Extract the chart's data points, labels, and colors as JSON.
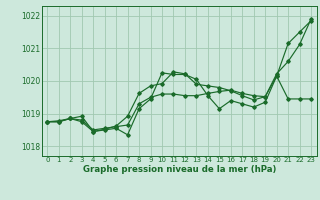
{
  "background_color": "#cde8dc",
  "grid_color": "#a0c8b0",
  "line_color": "#1a6b2a",
  "title": "Graphe pression niveau de la mer (hPa)",
  "xlim": [
    -0.5,
    23.5
  ],
  "ylim": [
    1017.7,
    1022.3
  ],
  "yticks": [
    1018,
    1019,
    1020,
    1021,
    1022
  ],
  "xticks": [
    0,
    1,
    2,
    3,
    4,
    5,
    6,
    7,
    8,
    9,
    10,
    11,
    12,
    13,
    14,
    15,
    16,
    17,
    18,
    19,
    20,
    21,
    22,
    23
  ],
  "series": [
    [
      1018.75,
      1018.75,
      1018.85,
      1018.8,
      1018.5,
      1018.55,
      1018.6,
      1018.65,
      1019.3,
      1019.5,
      1019.6,
      1019.6,
      1019.55,
      1019.55,
      1019.62,
      1019.68,
      1019.72,
      1019.62,
      1019.55,
      1019.52,
      1020.15,
      1019.45,
      1019.45,
      1019.45
    ],
    [
      1018.75,
      1018.75,
      1018.85,
      1018.75,
      1018.45,
      1018.5,
      1018.55,
      1018.35,
      1019.15,
      1019.45,
      1020.25,
      1020.2,
      1020.2,
      1020.05,
      1019.55,
      1019.15,
      1019.4,
      1019.3,
      1019.2,
      1019.35,
      1020.15,
      1021.15,
      1021.5,
      1021.85
    ],
    [
      1018.75,
      1018.78,
      1018.85,
      1018.92,
      1018.45,
      1018.52,
      1018.62,
      1018.92,
      1019.62,
      1019.85,
      1019.92,
      1020.28,
      1020.22,
      1019.9,
      1019.85,
      1019.8,
      1019.7,
      1019.55,
      1019.42,
      1019.52,
      1020.22,
      1020.6,
      1021.12,
      1021.9
    ]
  ]
}
